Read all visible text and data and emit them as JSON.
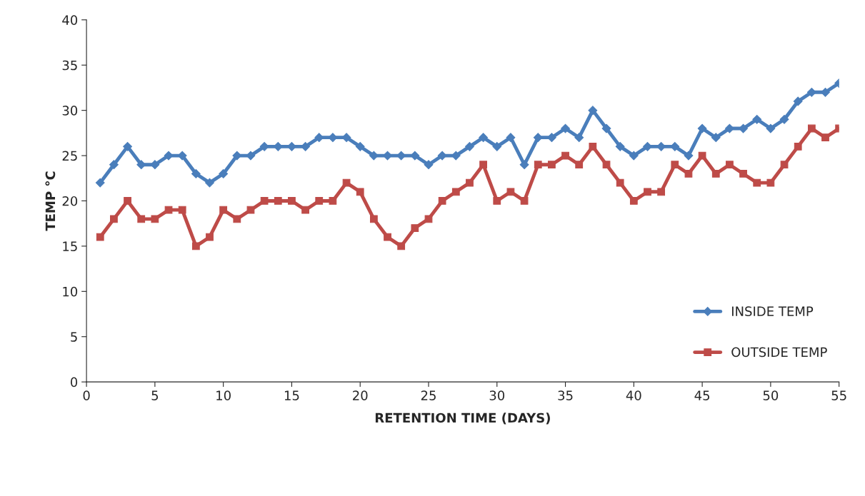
{
  "chart_data": {
    "type": "line",
    "xlabel": "RETENTION TIME (DAYS)",
    "ylabel": "TEMP °C",
    "x": [
      1,
      2,
      3,
      4,
      5,
      6,
      7,
      8,
      9,
      10,
      11,
      12,
      13,
      14,
      15,
      16,
      17,
      18,
      19,
      20,
      21,
      22,
      23,
      24,
      25,
      26,
      27,
      28,
      29,
      30,
      31,
      32,
      33,
      34,
      35,
      36,
      37,
      38,
      39,
      40,
      41,
      42,
      43,
      44,
      45,
      46,
      47,
      48,
      49,
      50,
      51,
      52,
      53,
      54,
      55
    ],
    "series": [
      {
        "name": "INSIDE TEMP",
        "color": "#4a7ebb",
        "marker": "diamond",
        "values": [
          22,
          24,
          26,
          24,
          24,
          25,
          25,
          23,
          22,
          23,
          25,
          25,
          26,
          26,
          26,
          26,
          27,
          27,
          27,
          26,
          25,
          25,
          25,
          25,
          24,
          25,
          25,
          26,
          27,
          26,
          27,
          24,
          27,
          27,
          28,
          27,
          30,
          28,
          26,
          25,
          26,
          26,
          26,
          25,
          28,
          27,
          28,
          28,
          29,
          28,
          29,
          31,
          32,
          32,
          33
        ]
      },
      {
        "name": "OUTSIDE TEMP",
        "color": "#be4b48",
        "marker": "square",
        "values": [
          16,
          18,
          20,
          18,
          18,
          19,
          19,
          15,
          16,
          19,
          18,
          19,
          20,
          20,
          20,
          19,
          20,
          20,
          22,
          21,
          18,
          16,
          15,
          17,
          18,
          20,
          21,
          22,
          24,
          20,
          21,
          20,
          24,
          24,
          25,
          24,
          26,
          24,
          22,
          20,
          21,
          21,
          24,
          23,
          25,
          23,
          24,
          23,
          22,
          22,
          24,
          26,
          28,
          27,
          28
        ]
      }
    ],
    "xlim": [
      0,
      55
    ],
    "xticks": [
      0,
      5,
      10,
      15,
      20,
      25,
      30,
      35,
      40,
      45,
      50,
      55
    ],
    "ylim": [
      0,
      40
    ],
    "yticks": [
      0,
      5,
      10,
      15,
      20,
      25,
      30,
      35,
      40
    ],
    "grid": false,
    "legend": "bottom right",
    "line_style": "solid"
  }
}
